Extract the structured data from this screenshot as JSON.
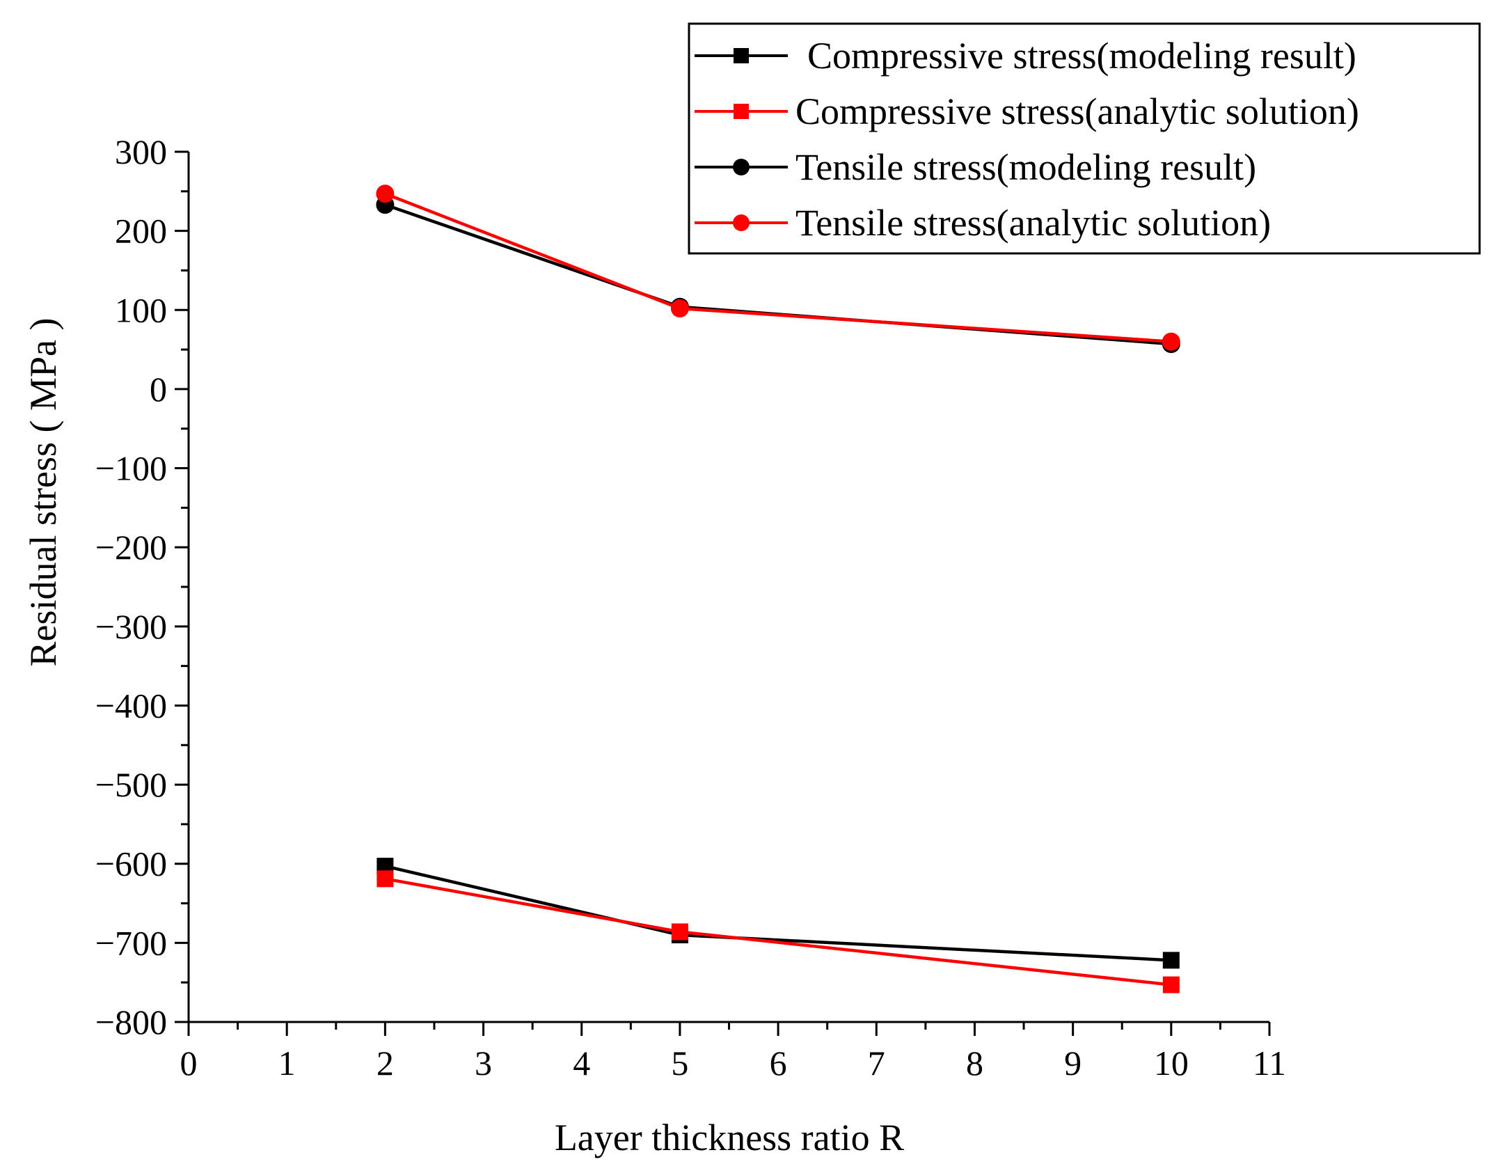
{
  "chart_data": {
    "type": "line",
    "title": "",
    "xlabel": "Layer thickness ratio R",
    "ylabel": "Residual stress ( MPa )",
    "xlim": [
      0,
      11
    ],
    "ylim": [
      -800,
      300
    ],
    "x_ticks": [
      "0",
      "1",
      "2",
      "3",
      "4",
      "5",
      "6",
      "7",
      "8",
      "9",
      "10",
      "11"
    ],
    "y_ticks": [
      "300",
      "200",
      "100",
      "0",
      "−100",
      "−200",
      "−300",
      "−400",
      "−500",
      "−600",
      "−700",
      "−800"
    ],
    "grid": false,
    "legend_position": "top-right",
    "x": [
      2,
      5,
      10
    ],
    "series": [
      {
        "name": "Compressive stress(modeling result)",
        "values": [
          -603,
          -690,
          -722
        ],
        "color": "#000000",
        "marker": "square"
      },
      {
        "name": "Compressive stress(analytic solution)",
        "values": [
          -619,
          -686,
          -753
        ],
        "color": "#ff0000",
        "marker": "square"
      },
      {
        "name": "Tensile stress(modeling result)",
        "values": [
          233,
          104,
          57
        ],
        "color": "#000000",
        "marker": "circle"
      },
      {
        "name": "Tensile stress(analytic solution)",
        "values": [
          247,
          102,
          60
        ],
        "color": "#ff0000",
        "marker": "circle"
      }
    ]
  }
}
